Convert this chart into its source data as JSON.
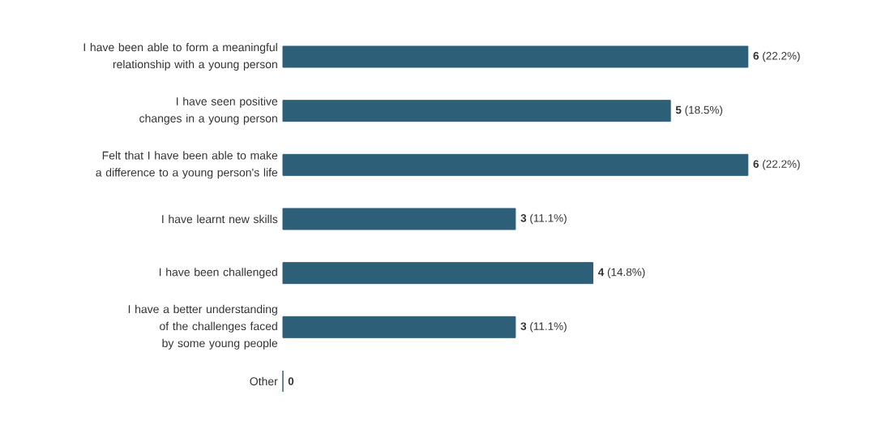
{
  "chart_data": {
    "type": "bar",
    "orientation": "horizontal",
    "categories": [
      "I have been able to form a meaningful relationship with a young person",
      "I have seen positive changes in a young person",
      "Felt that I have been able to make a difference to a young person's life",
      "I have learnt new skills",
      "I have been challenged",
      "I have a better understanding of the challenges faced by some young people",
      "Other"
    ],
    "values": [
      6,
      5,
      6,
      3,
      4,
      3,
      0
    ],
    "color": "#2d5f78",
    "value_labels": [
      "**6** (22.2%)",
      "**5** (18.5%)",
      "**6** (22.2%)",
      "**3** (11.1%)",
      "**4** (14.8%)",
      "**3** (11.1%)",
      "**0**"
    ]
  }
}
